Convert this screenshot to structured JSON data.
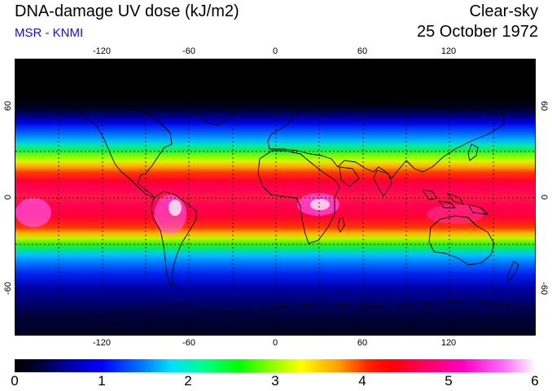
{
  "header": {
    "title": "DNA-damage UV dose (kJ/m2)",
    "subtitle": "MSR - KNMI",
    "sky_condition": "Clear-sky",
    "date": "25 October 1972"
  },
  "map": {
    "longitude_ticks": [
      "-120",
      "-60",
      "0",
      "60",
      "120"
    ],
    "latitude_ticks": [
      "60",
      "0",
      "-60"
    ],
    "projection": "equirectangular",
    "grid": "dotted, 30 degree spacing"
  },
  "colorbar": {
    "ticks": [
      "0",
      "1",
      "2",
      "3",
      "4",
      "5",
      "6"
    ],
    "range": [
      0,
      6
    ],
    "colors": [
      "#000000",
      "#0000ff",
      "#00e0ff",
      "#00ff00",
      "#ffff00",
      "#ff0000",
      "#ff00c0",
      "#ffffff"
    ]
  }
}
